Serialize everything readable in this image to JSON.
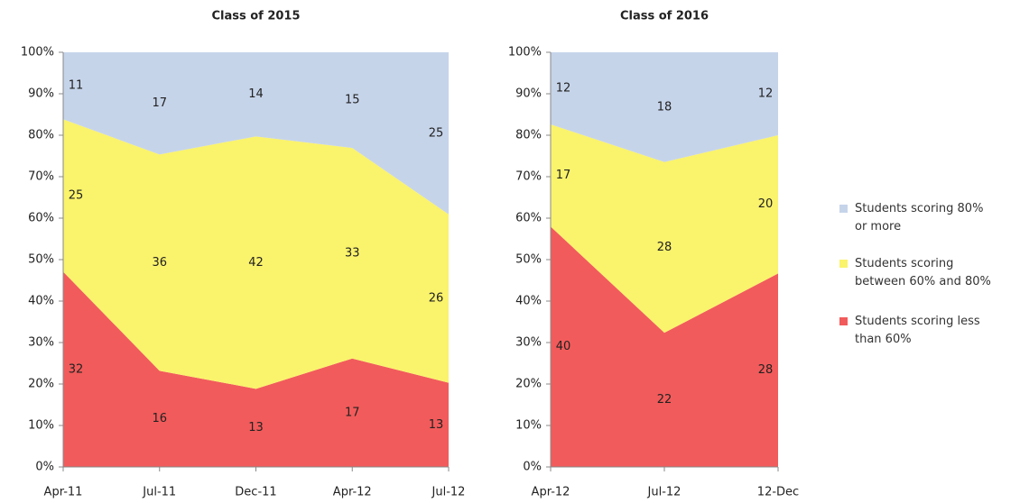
{
  "chart_data": [
    {
      "type": "area",
      "stacked": "percent",
      "title": "Class of 2015",
      "categories": [
        "Apr-11",
        "Jul-11",
        "Dec-11",
        "Apr-12",
        "Jul-12"
      ],
      "series": [
        {
          "name": "Students scoring less than 60%",
          "color": "#f25b5b",
          "values": [
            32,
            16,
            13,
            17,
            13
          ]
        },
        {
          "name": "Students scoring between 60% and 80%",
          "color": "#faf36c",
          "values": [
            25,
            36,
            42,
            33,
            26
          ]
        },
        {
          "name": "Students scoring 80% or more",
          "color": "#c6d4ea",
          "values": [
            11,
            17,
            14,
            15,
            25
          ]
        }
      ],
      "ylim": [
        0,
        100
      ],
      "yticks": [
        {
          "value": 0,
          "label": "0%"
        },
        {
          "value": 10,
          "label": "10%"
        },
        {
          "value": 20,
          "label": "20%"
        },
        {
          "value": 30,
          "label": "30%"
        },
        {
          "value": 40,
          "label": "40%"
        },
        {
          "value": 50,
          "label": "50%"
        },
        {
          "value": 60,
          "label": "60%"
        },
        {
          "value": 70,
          "label": "70%"
        },
        {
          "value": 80,
          "label": "80%"
        },
        {
          "value": 90,
          "label": "90%"
        },
        {
          "value": 100,
          "label": "100%"
        }
      ],
      "legend": "right"
    },
    {
      "type": "area",
      "stacked": "percent",
      "title": "Class of 2016",
      "categories": [
        "Apr-12",
        "Jul-12",
        "12-Dec"
      ],
      "series": [
        {
          "color": "#f25b5b",
          "values": [
            40,
            22,
            28
          ]
        },
        {
          "color": "#faf36c",
          "values": [
            17,
            28,
            20
          ]
        },
        {
          "color": "#c6d4ea",
          "values": [
            12,
            18,
            12
          ]
        }
      ],
      "ylim": [
        0,
        100
      ],
      "yticks": [
        {
          "value": 0,
          "label": "0%"
        },
        {
          "value": 10,
          "label": "10%"
        },
        {
          "value": 20,
          "label": "20%"
        },
        {
          "value": 30,
          "label": "30%"
        },
        {
          "value": 40,
          "label": "40%"
        },
        {
          "value": 50,
          "label": "50%"
        },
        {
          "value": 60,
          "label": "60%"
        },
        {
          "value": 70,
          "label": "70%"
        },
        {
          "value": 80,
          "label": "80%"
        },
        {
          "value": 90,
          "label": "90%"
        },
        {
          "value": 100,
          "label": "100%"
        }
      ]
    }
  ]
}
